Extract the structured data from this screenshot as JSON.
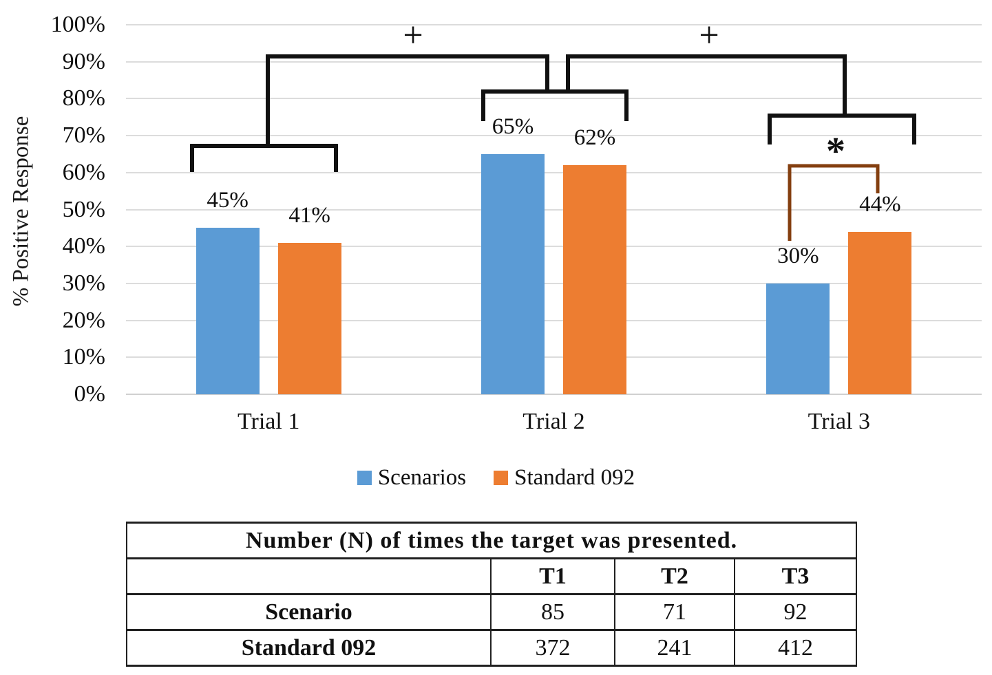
{
  "chart_data": {
    "type": "bar",
    "title": "",
    "categories": [
      "Trial 1",
      "Trial 2",
      "Trial 3"
    ],
    "series": [
      {
        "name": "Scenarios",
        "color": "#5B9BD5",
        "values": [
          45,
          65,
          30
        ],
        "labels": [
          "45%",
          "65%",
          "30%"
        ]
      },
      {
        "name": "Standard 092",
        "color": "#ED7D31",
        "values": [
          41,
          62,
          44
        ],
        "labels": [
          "41%",
          "62%",
          "44%"
        ]
      }
    ],
    "xlabel": "",
    "ylabel": "% Positive Response",
    "ylim": [
      0,
      100
    ],
    "ytick_labels": [
      "0%",
      "10%",
      "20%",
      "30%",
      "40%",
      "50%",
      "60%",
      "70%",
      "80%",
      "90%",
      "100%"
    ],
    "grid": true,
    "gridline_color": "#DCDCDC",
    "legend_position": "bottom",
    "annotations": [
      {
        "symbol": "+",
        "connects": [
          "Trial 1",
          "Trial 2"
        ],
        "color": "#111111"
      },
      {
        "symbol": "+",
        "connects": [
          "Trial 2",
          "Trial 3"
        ],
        "color": "#111111"
      },
      {
        "symbol": "*",
        "connects": [
          "Trial 3 Scenarios bar",
          "Trial 3 Standard 092 bar"
        ],
        "color": "#843F10"
      }
    ]
  },
  "table": {
    "title": "Number (N) of times the target was presented.",
    "col_headers": [
      "",
      "T1",
      "T2",
      "T3"
    ],
    "rows": [
      {
        "label": "Scenario",
        "values": [
          "85",
          "71",
          "92"
        ]
      },
      {
        "label": "Standard 092",
        "values": [
          "372",
          "241",
          "412"
        ]
      }
    ]
  }
}
